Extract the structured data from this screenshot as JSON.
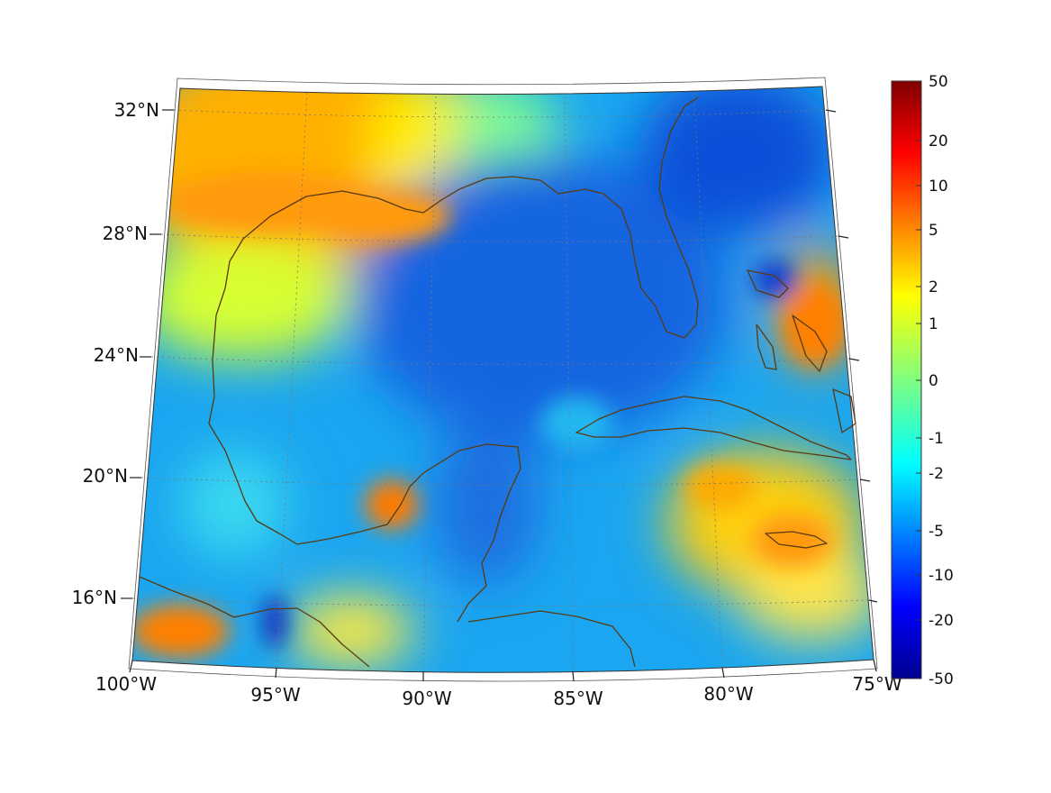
{
  "map": {
    "projection": "conic",
    "extent_lon": [
      -100,
      -75
    ],
    "extent_lat": [
      14,
      33
    ],
    "grid": true,
    "coastline_color": "#5a3a10",
    "longitude_labels": [
      "100°W",
      "95°W",
      "90°W",
      "85°W",
      "80°W",
      "75°W"
    ],
    "latitude_labels": [
      "32°N",
      "28°N",
      "24°N",
      "20°N",
      "16°N"
    ]
  },
  "colorbar": {
    "colormap": "jet",
    "tick_labels": [
      "50",
      "20",
      "10",
      "5",
      "2",
      "1",
      "0",
      "-1",
      "-2",
      "-5",
      "-10",
      "-20",
      "-50"
    ],
    "low_color": "#00008f",
    "high_color": "#800000"
  }
}
